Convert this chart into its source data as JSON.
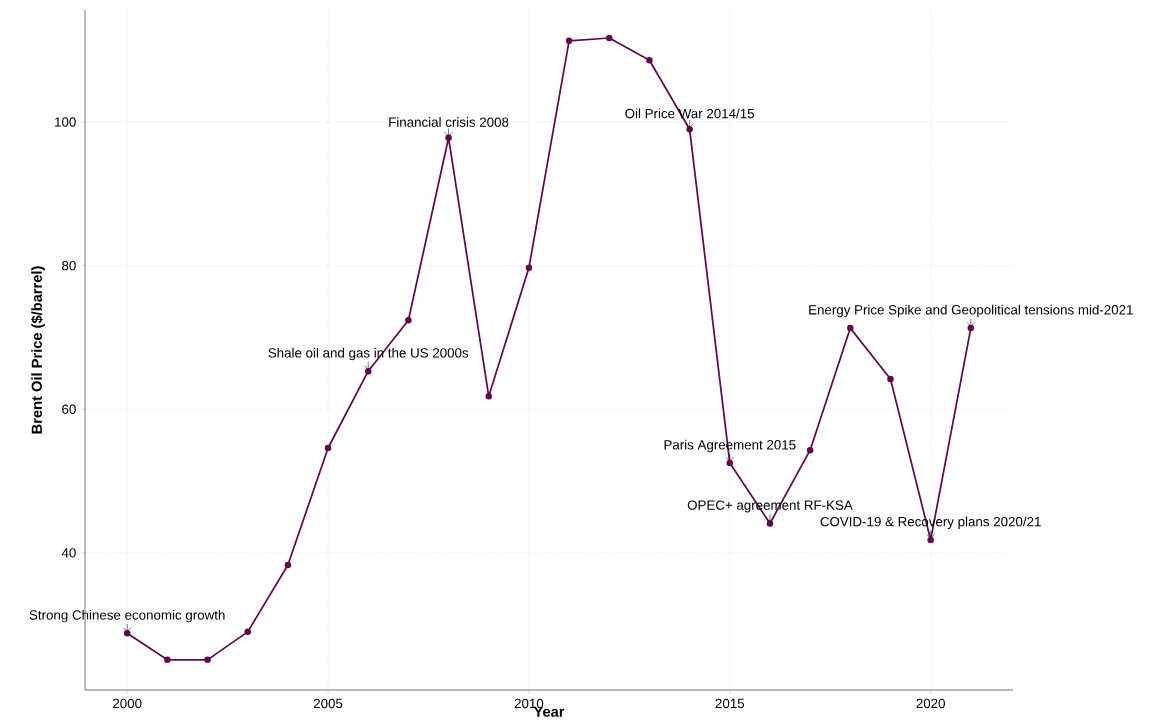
{
  "chart_data": {
    "type": "line",
    "xlabel": "Year",
    "ylabel": "Brent Oil Price ($/barrel)",
    "x": [
      2000,
      2001,
      2002,
      2003,
      2004,
      2005,
      2006,
      2007,
      2008,
      2009,
      2010,
      2011,
      2012,
      2013,
      2014,
      2015,
      2016,
      2017,
      2018,
      2019,
      2020,
      2021
    ],
    "values": [
      28.8,
      25.1,
      25.1,
      29.0,
      38.3,
      54.6,
      65.3,
      72.4,
      97.8,
      61.8,
      79.7,
      111.3,
      111.7,
      108.6,
      99.0,
      52.5,
      44.1,
      54.3,
      71.3,
      64.2,
      41.8,
      71.3
    ],
    "color": "#5e0a4c",
    "marker": "circle",
    "line_style": "solid",
    "grid": true,
    "xlim": [
      1998.95,
      2022.05
    ],
    "ylim": [
      20.9,
      115.6
    ],
    "xticks": [
      2000,
      2005,
      2010,
      2015,
      2020
    ],
    "yticks": [
      40,
      60,
      80,
      100
    ],
    "annotations": [
      {
        "text": "Strong Chinese economic growth",
        "x": 2000,
        "y": 28.8
      },
      {
        "text": "Shale oil and gas in the US 2000s",
        "x": 2006,
        "y": 65.3
      },
      {
        "text": "Financial crisis 2008",
        "x": 2008,
        "y": 97.8
      },
      {
        "text": "Oil Price War 2014/15",
        "x": 2014,
        "y": 99.0
      },
      {
        "text": "Paris Agreement 2015",
        "x": 2015,
        "y": 52.5
      },
      {
        "text": "OPEC+ agreement RF-KSA",
        "x": 2016,
        "y": 44.1
      },
      {
        "text": "COVID-19 & Recovery plans 2020/21",
        "x": 2020,
        "y": 41.8
      },
      {
        "text": "Energy Price Spike and Geopolitical tensions mid-2021",
        "x": 2021,
        "y": 71.3
      }
    ]
  }
}
